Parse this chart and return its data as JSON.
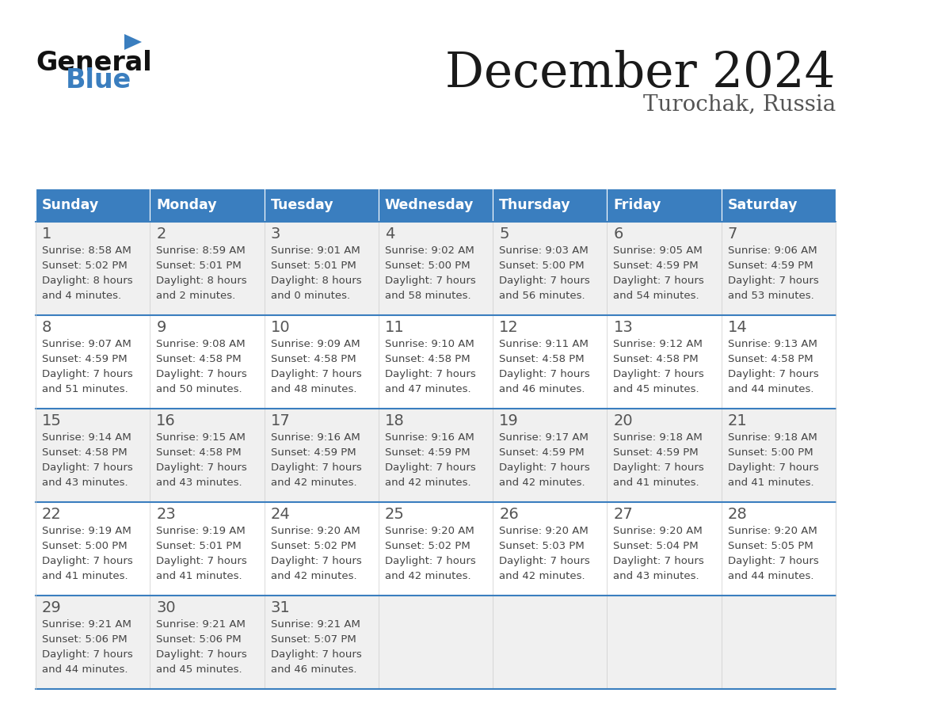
{
  "title": "December 2024",
  "subtitle": "Turochak, Russia",
  "header_color": "#3a7ebf",
  "header_text_color": "#ffffff",
  "days_of_week": [
    "Sunday",
    "Monday",
    "Tuesday",
    "Wednesday",
    "Thursday",
    "Friday",
    "Saturday"
  ],
  "bg_color": "#ffffff",
  "cell_bg_even": "#f0f0f0",
  "cell_bg_odd": "#ffffff",
  "row_line_color": "#3a7ebf",
  "grid_line_color": "#cccccc",
  "day_num_color": "#555555",
  "text_color": "#444444",
  "calendar": [
    [
      {
        "day": 1,
        "sunrise": "8:58 AM",
        "sunset": "5:02 PM",
        "daylight_line1": "Daylight: 8 hours",
        "daylight_line2": "and 4 minutes."
      },
      {
        "day": 2,
        "sunrise": "8:59 AM",
        "sunset": "5:01 PM",
        "daylight_line1": "Daylight: 8 hours",
        "daylight_line2": "and 2 minutes."
      },
      {
        "day": 3,
        "sunrise": "9:01 AM",
        "sunset": "5:01 PM",
        "daylight_line1": "Daylight: 8 hours",
        "daylight_line2": "and 0 minutes."
      },
      {
        "day": 4,
        "sunrise": "9:02 AM",
        "sunset": "5:00 PM",
        "daylight_line1": "Daylight: 7 hours",
        "daylight_line2": "and 58 minutes."
      },
      {
        "day": 5,
        "sunrise": "9:03 AM",
        "sunset": "5:00 PM",
        "daylight_line1": "Daylight: 7 hours",
        "daylight_line2": "and 56 minutes."
      },
      {
        "day": 6,
        "sunrise": "9:05 AM",
        "sunset": "4:59 PM",
        "daylight_line1": "Daylight: 7 hours",
        "daylight_line2": "and 54 minutes."
      },
      {
        "day": 7,
        "sunrise": "9:06 AM",
        "sunset": "4:59 PM",
        "daylight_line1": "Daylight: 7 hours",
        "daylight_line2": "and 53 minutes."
      }
    ],
    [
      {
        "day": 8,
        "sunrise": "9:07 AM",
        "sunset": "4:59 PM",
        "daylight_line1": "Daylight: 7 hours",
        "daylight_line2": "and 51 minutes."
      },
      {
        "day": 9,
        "sunrise": "9:08 AM",
        "sunset": "4:58 PM",
        "daylight_line1": "Daylight: 7 hours",
        "daylight_line2": "and 50 minutes."
      },
      {
        "day": 10,
        "sunrise": "9:09 AM",
        "sunset": "4:58 PM",
        "daylight_line1": "Daylight: 7 hours",
        "daylight_line2": "and 48 minutes."
      },
      {
        "day": 11,
        "sunrise": "9:10 AM",
        "sunset": "4:58 PM",
        "daylight_line1": "Daylight: 7 hours",
        "daylight_line2": "and 47 minutes."
      },
      {
        "day": 12,
        "sunrise": "9:11 AM",
        "sunset": "4:58 PM",
        "daylight_line1": "Daylight: 7 hours",
        "daylight_line2": "and 46 minutes."
      },
      {
        "day": 13,
        "sunrise": "9:12 AM",
        "sunset": "4:58 PM",
        "daylight_line1": "Daylight: 7 hours",
        "daylight_line2": "and 45 minutes."
      },
      {
        "day": 14,
        "sunrise": "9:13 AM",
        "sunset": "4:58 PM",
        "daylight_line1": "Daylight: 7 hours",
        "daylight_line2": "and 44 minutes."
      }
    ],
    [
      {
        "day": 15,
        "sunrise": "9:14 AM",
        "sunset": "4:58 PM",
        "daylight_line1": "Daylight: 7 hours",
        "daylight_line2": "and 43 minutes."
      },
      {
        "day": 16,
        "sunrise": "9:15 AM",
        "sunset": "4:58 PM",
        "daylight_line1": "Daylight: 7 hours",
        "daylight_line2": "and 43 minutes."
      },
      {
        "day": 17,
        "sunrise": "9:16 AM",
        "sunset": "4:59 PM",
        "daylight_line1": "Daylight: 7 hours",
        "daylight_line2": "and 42 minutes."
      },
      {
        "day": 18,
        "sunrise": "9:16 AM",
        "sunset": "4:59 PM",
        "daylight_line1": "Daylight: 7 hours",
        "daylight_line2": "and 42 minutes."
      },
      {
        "day": 19,
        "sunrise": "9:17 AM",
        "sunset": "4:59 PM",
        "daylight_line1": "Daylight: 7 hours",
        "daylight_line2": "and 42 minutes."
      },
      {
        "day": 20,
        "sunrise": "9:18 AM",
        "sunset": "4:59 PM",
        "daylight_line1": "Daylight: 7 hours",
        "daylight_line2": "and 41 minutes."
      },
      {
        "day": 21,
        "sunrise": "9:18 AM",
        "sunset": "5:00 PM",
        "daylight_line1": "Daylight: 7 hours",
        "daylight_line2": "and 41 minutes."
      }
    ],
    [
      {
        "day": 22,
        "sunrise": "9:19 AM",
        "sunset": "5:00 PM",
        "daylight_line1": "Daylight: 7 hours",
        "daylight_line2": "and 41 minutes."
      },
      {
        "day": 23,
        "sunrise": "9:19 AM",
        "sunset": "5:01 PM",
        "daylight_line1": "Daylight: 7 hours",
        "daylight_line2": "and 41 minutes."
      },
      {
        "day": 24,
        "sunrise": "9:20 AM",
        "sunset": "5:02 PM",
        "daylight_line1": "Daylight: 7 hours",
        "daylight_line2": "and 42 minutes."
      },
      {
        "day": 25,
        "sunrise": "9:20 AM",
        "sunset": "5:02 PM",
        "daylight_line1": "Daylight: 7 hours",
        "daylight_line2": "and 42 minutes."
      },
      {
        "day": 26,
        "sunrise": "9:20 AM",
        "sunset": "5:03 PM",
        "daylight_line1": "Daylight: 7 hours",
        "daylight_line2": "and 42 minutes."
      },
      {
        "day": 27,
        "sunrise": "9:20 AM",
        "sunset": "5:04 PM",
        "daylight_line1": "Daylight: 7 hours",
        "daylight_line2": "and 43 minutes."
      },
      {
        "day": 28,
        "sunrise": "9:20 AM",
        "sunset": "5:05 PM",
        "daylight_line1": "Daylight: 7 hours",
        "daylight_line2": "and 44 minutes."
      }
    ],
    [
      {
        "day": 29,
        "sunrise": "9:21 AM",
        "sunset": "5:06 PM",
        "daylight_line1": "Daylight: 7 hours",
        "daylight_line2": "and 44 minutes."
      },
      {
        "day": 30,
        "sunrise": "9:21 AM",
        "sunset": "5:06 PM",
        "daylight_line1": "Daylight: 7 hours",
        "daylight_line2": "and 45 minutes."
      },
      {
        "day": 31,
        "sunrise": "9:21 AM",
        "sunset": "5:07 PM",
        "daylight_line1": "Daylight: 7 hours",
        "daylight_line2": "and 46 minutes."
      },
      null,
      null,
      null,
      null
    ]
  ]
}
